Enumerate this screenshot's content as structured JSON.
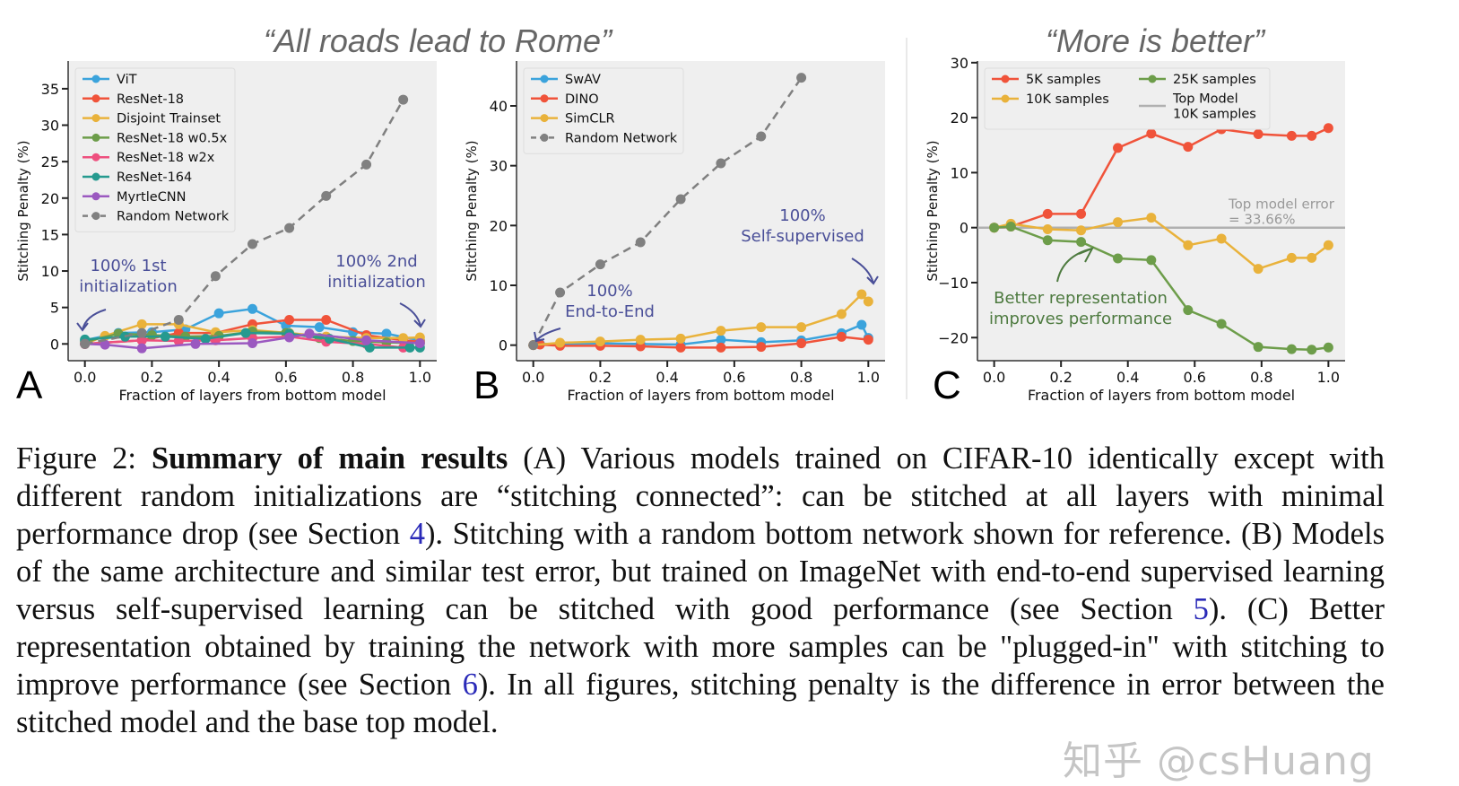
{
  "figure": {
    "titles": [
      "“All roads lead to Rome”",
      "“More is better”"
    ],
    "watermark": "知乎 @csHuang"
  },
  "caption": {
    "prefix": "Figure 2: ",
    "bold": "Summary of main results",
    "t1": " (A) Various models trained on CIFAR-10 identically except with different random initializations are “stitching connected”: can be stitched at all layers with minimal performance drop (see Section ",
    "r1": "4",
    "t2": ").  Stitching with a random bottom network shown for reference. (B) Models of the same architecture and similar test error, but trained on ImageNet with end-to-end supervised learning versus self-supervised learning can be stitched with good performance (see Section ",
    "r2": "5",
    "t3": "). (C) Better representation obtained by training the network with more samples can be \"plugged-in\" with stitching to improve performance (see Section ",
    "r3": "6",
    "t4": "). In all figures, stitching penalty is the difference in error between the stitched model and the base top model."
  },
  "chart_data": [
    {
      "type": "line",
      "panel": "A",
      "xlabel": "Fraction of layers from bottom model",
      "ylabel": "Stitching Penalty (%)",
      "xlim": [
        -0.05,
        1.05
      ],
      "ylim": [
        -2.3,
        38.8
      ],
      "xticks": [
        0.0,
        0.2,
        0.4,
        0.6,
        0.8,
        1.0
      ],
      "yticks": [
        0,
        5,
        10,
        15,
        20,
        25,
        30,
        35
      ],
      "background": "#efefef",
      "legend": "top-left",
      "annotations": [
        {
          "text": [
            "100% 1st",
            "initialization"
          ],
          "color": "#4a4f98"
        },
        {
          "text": [
            "100% 2nd",
            "initialization"
          ],
          "color": "#4a4f98"
        }
      ],
      "series": [
        {
          "name": "ViT",
          "color": "#3ba3dc",
          "x": [
            0,
            0.1,
            0.2,
            0.3,
            0.4,
            0.5,
            0.6,
            0.7,
            0.8,
            0.9,
            1.0
          ],
          "y": [
            0.5,
            1.5,
            1.6,
            2.0,
            4.2,
            4.8,
            2.5,
            2.3,
            1.6,
            1.4,
            0.5
          ]
        },
        {
          "name": "ResNet-18",
          "color": "#f0533a",
          "x": [
            0,
            0.17,
            0.28,
            0.39,
            0.5,
            0.61,
            0.72,
            0.84,
            0.95,
            1.0
          ],
          "y": [
            0,
            0.5,
            1.5,
            1.5,
            2.7,
            3.3,
            3.3,
            1.2,
            0.5,
            0.3
          ]
        },
        {
          "name": "Disjoint Trainset",
          "color": "#e9b23b",
          "x": [
            0,
            0.06,
            0.17,
            0.28,
            0.39,
            0.5,
            0.61,
            0.72,
            0.84,
            0.95,
            1.0
          ],
          "y": [
            0,
            1.1,
            2.7,
            2.7,
            1.6,
            1.9,
            1.5,
            1.0,
            0.8,
            0.8,
            0.9
          ]
        },
        {
          "name": "ResNet-18 w0.5x",
          "color": "#6d9d4a",
          "x": [
            0,
            0.1,
            0.2,
            0.3,
            0.4,
            0.5,
            0.6,
            0.7,
            0.8,
            0.9,
            1.0
          ],
          "y": [
            0.3,
            1.4,
            1.2,
            1.0,
            1.1,
            1.7,
            1.5,
            0.8,
            0.4,
            0.2,
            0.1
          ]
        },
        {
          "name": "ResNet-18 w2x",
          "color": "#ee4f7e",
          "x": [
            0,
            0.17,
            0.28,
            0.39,
            0.5,
            0.61,
            0.72,
            0.84,
            0.95
          ],
          "y": [
            0,
            0.5,
            0.4,
            0.5,
            0.8,
            1.0,
            0.3,
            0,
            -0.5
          ]
        },
        {
          "name": "ResNet-164",
          "color": "#259a8f",
          "x": [
            0,
            0.12,
            0.24,
            0.36,
            0.48,
            0.61,
            0.73,
            0.85,
            0.97,
            1.0
          ],
          "y": [
            0.6,
            1.0,
            1.0,
            0.7,
            1.5,
            1.4,
            0.7,
            -0.5,
            -0.5,
            -0.5
          ]
        },
        {
          "name": "MyrtleCNN",
          "color": "#9b59c0",
          "x": [
            0,
            0.06,
            0.17,
            0.33,
            0.5,
            0.61,
            0.67,
            0.84,
            1.0
          ],
          "y": [
            0,
            -0.1,
            -0.6,
            0,
            0.1,
            0.9,
            1.4,
            0.5,
            0.1
          ]
        },
        {
          "name": "Random Network",
          "color": "#808080",
          "dashed": true,
          "x": [
            0,
            0.17,
            0.28,
            0.39,
            0.5,
            0.61,
            0.72,
            0.84,
            0.95
          ],
          "y": [
            0,
            1.5,
            3.3,
            9.3,
            13.7,
            15.9,
            20.3,
            24.6,
            33.5
          ]
        }
      ]
    },
    {
      "type": "line",
      "panel": "B",
      "xlabel": "Fraction of layers from bottom model",
      "ylabel": "Stitching Penalty (%)",
      "xlim": [
        -0.05,
        1.05
      ],
      "ylim": [
        -2.6,
        47.5
      ],
      "xticks": [
        0.0,
        0.2,
        0.4,
        0.6,
        0.8,
        1.0
      ],
      "yticks": [
        0,
        10,
        20,
        30,
        40
      ],
      "background": "#efefef",
      "legend": "top-left",
      "annotations": [
        {
          "text": [
            "100%",
            "End-to-End"
          ],
          "color": "#4a4f98"
        },
        {
          "text": [
            "100%",
            "Self-supervised"
          ],
          "color": "#4a4f98"
        }
      ],
      "series": [
        {
          "name": "SwAV",
          "color": "#3ba3dc",
          "x": [
            0,
            0.02,
            0.08,
            0.2,
            0.32,
            0.44,
            0.56,
            0.68,
            0.8,
            0.92,
            0.98,
            1.0
          ],
          "y": [
            0,
            0.2,
            0.2,
            0.3,
            0.2,
            0.1,
            0.9,
            0.5,
            0.8,
            2.0,
            3.4,
            1.2
          ]
        },
        {
          "name": "DINO",
          "color": "#f0533a",
          "x": [
            0,
            0.02,
            0.08,
            0.2,
            0.32,
            0.44,
            0.56,
            0.68,
            0.8,
            0.92,
            1.0
          ],
          "y": [
            0,
            0.1,
            -0.1,
            -0.1,
            -0.2,
            -0.4,
            -0.4,
            -0.3,
            0.3,
            1.4,
            0.9
          ]
        },
        {
          "name": "SimCLR",
          "color": "#e9b23b",
          "x": [
            0,
            0.08,
            0.2,
            0.32,
            0.44,
            0.56,
            0.68,
            0.8,
            0.92,
            0.98,
            1.0
          ],
          "y": [
            0,
            0.4,
            0.6,
            0.9,
            1.1,
            2.4,
            3.0,
            3.0,
            5.2,
            8.5,
            7.3
          ]
        },
        {
          "name": "Random Network",
          "color": "#808080",
          "dashed": true,
          "x": [
            0,
            0.08,
            0.2,
            0.32,
            0.44,
            0.56,
            0.68,
            0.8
          ],
          "y": [
            0,
            8.8,
            13.5,
            17.2,
            24.4,
            30.4,
            34.9,
            44.7
          ]
        }
      ]
    },
    {
      "type": "line",
      "panel": "C",
      "xlabel": "Fraction of layers from bottom model",
      "ylabel": "Stitching Penalty (%)",
      "xlim": [
        -0.05,
        1.05
      ],
      "ylim": [
        -24.2,
        30.3
      ],
      "xticks": [
        0.0,
        0.2,
        0.4,
        0.6,
        0.8,
        1.0
      ],
      "yticks": [
        -20,
        -10,
        0,
        10,
        20,
        30
      ],
      "background": "#efefef",
      "legend": "top-left, 2 columns",
      "hline": {
        "y": 0,
        "color": "#b0b0b0",
        "label": [
          "Top model error",
          "= 33.66%"
        ]
      },
      "annotations": [
        {
          "text": [
            "Better representation",
            "improves performance"
          ],
          "color": "#4d7a3f"
        }
      ],
      "series": [
        {
          "name": "5K samples",
          "color": "#f0533a",
          "x": [
            0,
            0.05,
            0.16,
            0.26,
            0.37,
            0.47,
            0.58,
            0.68,
            0.79,
            0.89,
            0.95,
            1.0
          ],
          "y": [
            0,
            0.2,
            2.5,
            2.5,
            14.5,
            17.1,
            14.7,
            17.9,
            17.0,
            16.7,
            16.7,
            18.1
          ]
        },
        {
          "name": "10K samples",
          "color": "#e9b23b",
          "x": [
            0,
            0.05,
            0.16,
            0.26,
            0.37,
            0.47,
            0.58,
            0.68,
            0.79,
            0.89,
            0.95,
            1.0
          ],
          "y": [
            0,
            0.7,
            -0.3,
            -0.5,
            1.0,
            1.8,
            -3.2,
            -2.0,
            -7.5,
            -5.5,
            -5.5,
            -3.2
          ]
        },
        {
          "name": "25K samples",
          "color": "#6d9d4a",
          "x": [
            0,
            0.05,
            0.16,
            0.26,
            0.37,
            0.47,
            0.58,
            0.68,
            0.79,
            0.89,
            0.95,
            1.0
          ],
          "y": [
            0,
            0.2,
            -2.3,
            -2.6,
            -5.6,
            -5.9,
            -15.0,
            -17.5,
            -21.7,
            -22.1,
            -22.2,
            -21.8
          ]
        },
        {
          "name": "Top Model\n10K samples",
          "color": "#b0b0b0",
          "legend_only": true
        }
      ]
    }
  ]
}
